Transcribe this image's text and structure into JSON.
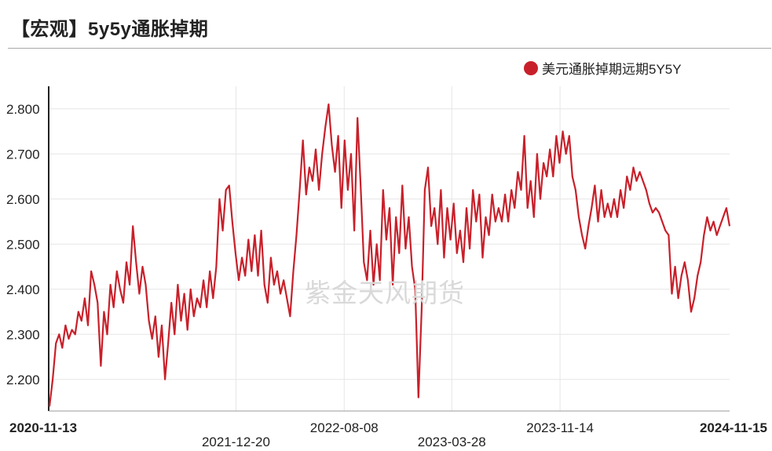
{
  "title": "【宏观】5y5y通胀掉期",
  "watermark": "紫金天风期货",
  "legend": {
    "label": "美元通胀掉期远期5Y5Y",
    "color": "#c8202a"
  },
  "chart_data": {
    "type": "line",
    "title": "【宏观】5y5y通胀掉期",
    "xlabel": "",
    "ylabel": "",
    "ylim": [
      2.13,
      2.85
    ],
    "yticks": [
      2.2,
      2.3,
      2.4,
      2.5,
      2.6,
      2.7,
      2.8
    ],
    "ytick_labels": [
      "2.200",
      "2.300",
      "2.400",
      "2.500",
      "2.600",
      "2.700",
      "2.800"
    ],
    "xticks": [
      {
        "label": "2020-11-13",
        "pos": 0.0,
        "bold": true,
        "row": 0
      },
      {
        "label": "2021-12-20",
        "pos": 0.275,
        "bold": false,
        "row": 1
      },
      {
        "label": "2022-08-08",
        "pos": 0.434,
        "bold": false,
        "row": 0
      },
      {
        "label": "2023-03-28",
        "pos": 0.592,
        "bold": false,
        "row": 1
      },
      {
        "label": "2023-11-14",
        "pos": 0.751,
        "bold": false,
        "row": 0
      },
      {
        "label": "2024-11-15",
        "pos": 1.0,
        "bold": true,
        "row": 0
      }
    ],
    "grid": true,
    "series": [
      {
        "name": "美元通胀掉期远期5Y5Y",
        "color": "#c8202a",
        "values": [
          2.14,
          2.2,
          2.28,
          2.3,
          2.27,
          2.32,
          2.29,
          2.31,
          2.3,
          2.35,
          2.33,
          2.38,
          2.32,
          2.44,
          2.41,
          2.37,
          2.23,
          2.35,
          2.3,
          2.41,
          2.36,
          2.44,
          2.4,
          2.37,
          2.46,
          2.41,
          2.54,
          2.46,
          2.39,
          2.45,
          2.41,
          2.33,
          2.29,
          2.34,
          2.25,
          2.32,
          2.2,
          2.28,
          2.37,
          2.3,
          2.41,
          2.33,
          2.39,
          2.31,
          2.4,
          2.34,
          2.38,
          2.36,
          2.42,
          2.36,
          2.44,
          2.38,
          2.45,
          2.6,
          2.53,
          2.62,
          2.63,
          2.55,
          2.48,
          2.42,
          2.47,
          2.43,
          2.51,
          2.44,
          2.52,
          2.43,
          2.53,
          2.41,
          2.37,
          2.47,
          2.41,
          2.44,
          2.39,
          2.42,
          2.38,
          2.34,
          2.44,
          2.52,
          2.62,
          2.73,
          2.61,
          2.67,
          2.64,
          2.71,
          2.62,
          2.7,
          2.76,
          2.81,
          2.72,
          2.66,
          2.74,
          2.58,
          2.73,
          2.62,
          2.7,
          2.53,
          2.78,
          2.63,
          2.46,
          2.42,
          2.53,
          2.41,
          2.5,
          2.42,
          2.62,
          2.51,
          2.58,
          2.41,
          2.56,
          2.48,
          2.63,
          2.49,
          2.56,
          2.45,
          2.4,
          2.16,
          2.35,
          2.62,
          2.67,
          2.54,
          2.58,
          2.5,
          2.62,
          2.47,
          2.58,
          2.51,
          2.59,
          2.48,
          2.53,
          2.46,
          2.58,
          2.49,
          2.62,
          2.55,
          2.61,
          2.47,
          2.56,
          2.52,
          2.61,
          2.55,
          2.58,
          2.55,
          2.61,
          2.55,
          2.62,
          2.58,
          2.66,
          2.62,
          2.74,
          2.58,
          2.64,
          2.56,
          2.7,
          2.6,
          2.68,
          2.65,
          2.71,
          2.65,
          2.74,
          2.68,
          2.75,
          2.7,
          2.74,
          2.65,
          2.62,
          2.56,
          2.52,
          2.49,
          2.54,
          2.58,
          2.63,
          2.55,
          2.62,
          2.56,
          2.59,
          2.56,
          2.6,
          2.56,
          2.62,
          2.58,
          2.65,
          2.62,
          2.67,
          2.64,
          2.66,
          2.64,
          2.62,
          2.59,
          2.57,
          2.58,
          2.57,
          2.55,
          2.53,
          2.52,
          2.39,
          2.45,
          2.38,
          2.43,
          2.46,
          2.42,
          2.35,
          2.38,
          2.43,
          2.46,
          2.52,
          2.56,
          2.53,
          2.55,
          2.52,
          2.54,
          2.56,
          2.58,
          2.54
        ]
      }
    ]
  }
}
